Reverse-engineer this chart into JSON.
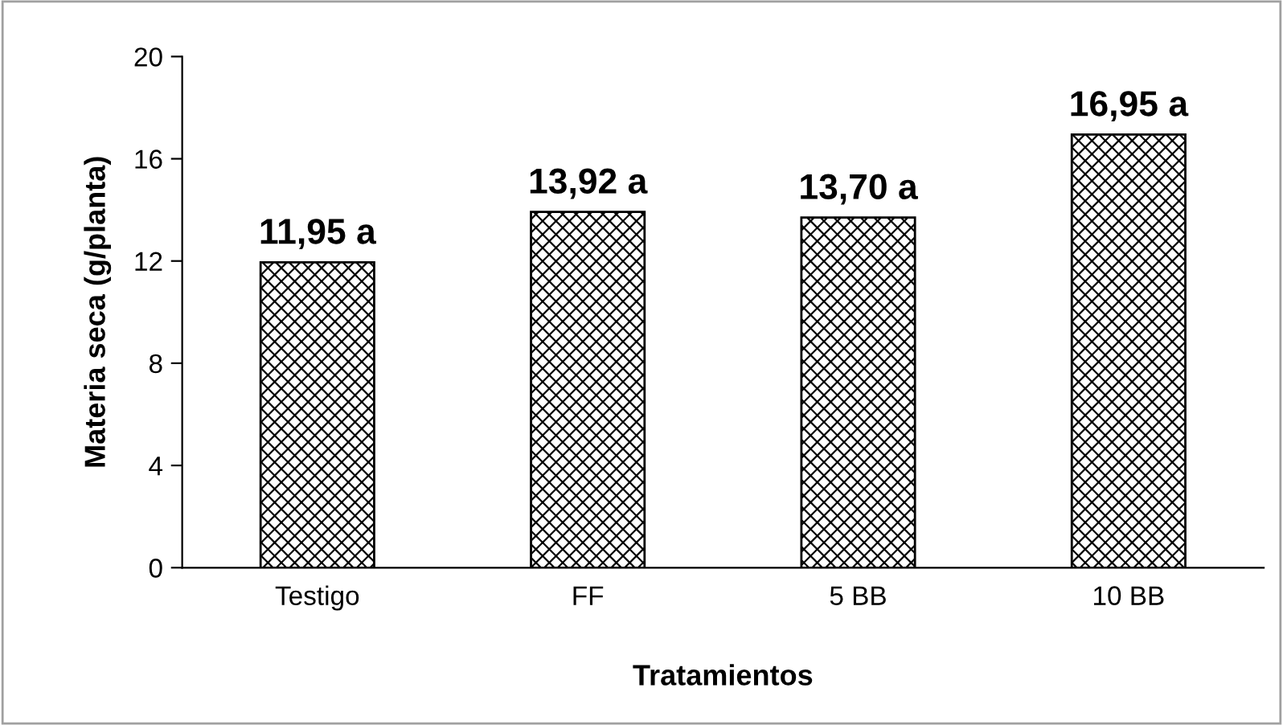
{
  "chart_data": {
    "type": "bar",
    "xlabel": "Tratamientos",
    "ylabel": "Materia seca (g/planta)",
    "categories": [
      "Testigo",
      "FF",
      "5 BB",
      "10 BB"
    ],
    "values": [
      11.95,
      13.92,
      13.7,
      16.95
    ],
    "value_labels": [
      "11,95 a",
      "13,92 a",
      "13,70 a",
      "16,95 a"
    ],
    "color": "#000000",
    "ylim": [
      0,
      20
    ],
    "yticks": [
      0,
      4,
      8,
      12,
      16,
      20
    ],
    "grid": false,
    "legend": false
  }
}
